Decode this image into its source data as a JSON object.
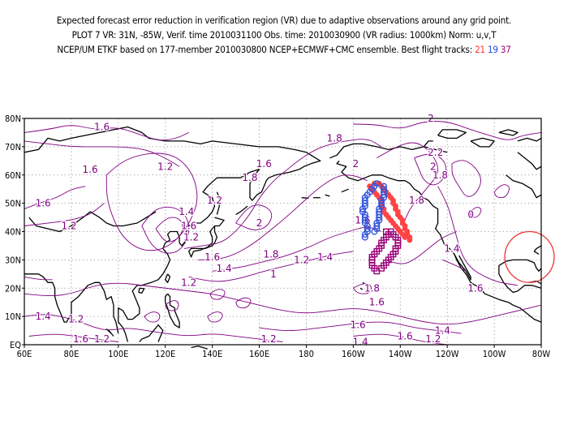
{
  "header": {
    "line1": "Expected forecast error reduction in verification region (VR) due to adaptive observations around any grid point.",
    "line2": "PLOT 7 VR: 31N, -85W, Verif. time 2010031100 Obs. time: 2010030900 (VR radius: 1000km) Norm: u,v,T",
    "line3_prefix": "NCEP/UM ETKF based on 177-member 2010030800 NCEP+ECMWF+CMC ensemble. Best flight tracks:",
    "tracks": [
      {
        "number": "21",
        "color": "#ff3333"
      },
      {
        "number": "19",
        "color": "#2244dd"
      },
      {
        "number": "37",
        "color": "#990077"
      }
    ]
  },
  "map": {
    "lon_labels": [
      "60E",
      "80E",
      "100E",
      "120E",
      "140E",
      "160E",
      "180",
      "160W",
      "140W",
      "120W",
      "100W",
      "80W"
    ],
    "lat_labels": [
      "EQ",
      "10N",
      "20N",
      "30N",
      "40N",
      "50N",
      "60N",
      "70N",
      "80N"
    ],
    "contour_color": "#800080",
    "contour_labels": [
      {
        "text": "1.6",
        "lon": 93,
        "lat": 77
      },
      {
        "text": "1.2",
        "lon": 120,
        "lat": 63
      },
      {
        "text": "1.6",
        "lon": 88,
        "lat": 62
      },
      {
        "text": "1.6",
        "lon": 68,
        "lat": 50
      },
      {
        "text": "1.2",
        "lon": 79,
        "lat": 42
      },
      {
        "text": "1.2",
        "lon": 141,
        "lat": 51
      },
      {
        "text": "1.4",
        "lon": 129,
        "lat": 47
      },
      {
        "text": "1.6",
        "lon": 130,
        "lat": 42
      },
      {
        "text": "1.2",
        "lon": 131,
        "lat": 38
      },
      {
        "text": "1.6",
        "lon": 162,
        "lat": 64
      },
      {
        "text": "1.8",
        "lon": 156,
        "lat": 59
      },
      {
        "text": "2",
        "lon": 160,
        "lat": 43
      },
      {
        "text": "1.8",
        "lon": 192,
        "lat": 73
      },
      {
        "text": "2",
        "lon": 201,
        "lat": 64
      },
      {
        "text": "1.6",
        "lon": 204,
        "lat": 44
      },
      {
        "text": "1.8",
        "lon": 165,
        "lat": 32
      },
      {
        "text": "1.6",
        "lon": 140,
        "lat": 31
      },
      {
        "text": "1.4",
        "lon": 145,
        "lat": 27
      },
      {
        "text": "1.2",
        "lon": 130,
        "lat": 22
      },
      {
        "text": "1.2",
        "lon": 178,
        "lat": 30
      },
      {
        "text": "1.4",
        "lon": 188,
        "lat": 31
      },
      {
        "text": "1",
        "lon": 166,
        "lat": 25
      },
      {
        "text": "2",
        "lon": 233,
        "lat": 80
      },
      {
        "text": "2.2",
        "lon": 235,
        "lat": 68
      },
      {
        "text": "2",
        "lon": 234,
        "lat": 63
      },
      {
        "text": "1.8",
        "lon": 237,
        "lat": 60
      },
      {
        "text": "1.8",
        "lon": 227,
        "lat": 51
      },
      {
        "text": "0",
        "lon": 250,
        "lat": 46
      },
      {
        "text": "1.4",
        "lon": 242,
        "lat": 34
      },
      {
        "text": "1.6",
        "lon": 252,
        "lat": 20
      },
      {
        "text": "1.8",
        "lon": 208,
        "lat": 20
      },
      {
        "text": "1.6",
        "lon": 210,
        "lat": 15
      },
      {
        "text": "1.6",
        "lon": 202,
        "lat": 7
      },
      {
        "text": "1.6",
        "lon": 222,
        "lat": 3
      },
      {
        "text": "1.4",
        "lon": 203,
        "lat": 1
      },
      {
        "text": "1.4",
        "lon": 238,
        "lat": 5
      },
      {
        "text": "1.2",
        "lon": 164,
        "lat": 2
      },
      {
        "text": "1.2",
        "lon": 234,
        "lat": 2
      },
      {
        "text": "1.4",
        "lon": 68,
        "lat": 10
      },
      {
        "text": "1.2",
        "lon": 82,
        "lat": 9
      },
      {
        "text": "1.6",
        "lon": 84,
        "lat": 2
      },
      {
        "text": "1.2",
        "lon": 93,
        "lat": 2
      }
    ],
    "verification_region": {
      "lat": 31,
      "lon": -85,
      "radius_km": 1000,
      "color": "#ee3333"
    },
    "flight_tracks": [
      {
        "id": "21",
        "color": "#ff4444",
        "marker": "dot",
        "points": [
          [
            57,
            211
          ],
          [
            56,
            212
          ],
          [
            55,
            213
          ],
          [
            54,
            214
          ],
          [
            53,
            215
          ],
          [
            52,
            216
          ],
          [
            51,
            217
          ],
          [
            50,
            217
          ],
          [
            49,
            218
          ],
          [
            48,
            218
          ],
          [
            47,
            219
          ],
          [
            46,
            219
          ],
          [
            45,
            220
          ],
          [
            44,
            221
          ],
          [
            43,
            221
          ],
          [
            42,
            222
          ],
          [
            41,
            222
          ],
          [
            40,
            223
          ],
          [
            39,
            223
          ],
          [
            38,
            224
          ],
          [
            37,
            224
          ],
          [
            38,
            222
          ],
          [
            39,
            221
          ],
          [
            40,
            220
          ],
          [
            41,
            219
          ],
          [
            42,
            218
          ],
          [
            43,
            217
          ],
          [
            44,
            216
          ],
          [
            45,
            215
          ],
          [
            46,
            214
          ],
          [
            47,
            213
          ],
          [
            48,
            213
          ],
          [
            49,
            212
          ],
          [
            50,
            212
          ],
          [
            51,
            212
          ],
          [
            52,
            211
          ],
          [
            53,
            210
          ],
          [
            54,
            209
          ],
          [
            55,
            208
          ],
          [
            56,
            207
          ],
          [
            57,
            209
          ]
        ]
      },
      {
        "id": "19",
        "color": "#3355dd",
        "marker": "circle",
        "points": [
          [
            57,
            210
          ],
          [
            56,
            209
          ],
          [
            55,
            208
          ],
          [
            54,
            207
          ],
          [
            53,
            206
          ],
          [
            52,
            205
          ],
          [
            51,
            205
          ],
          [
            50,
            205
          ],
          [
            49,
            205
          ],
          [
            48,
            204
          ],
          [
            47,
            204
          ],
          [
            46,
            205
          ],
          [
            45,
            205
          ],
          [
            44,
            205
          ],
          [
            43,
            205
          ],
          [
            42,
            206
          ],
          [
            41,
            206
          ],
          [
            40,
            206
          ],
          [
            39,
            205
          ],
          [
            38,
            205
          ],
          [
            40,
            209
          ],
          [
            41,
            210
          ],
          [
            42,
            210
          ],
          [
            43,
            210
          ],
          [
            44,
            211
          ],
          [
            45,
            211
          ],
          [
            46,
            211
          ],
          [
            47,
            211
          ],
          [
            48,
            211
          ],
          [
            49,
            212
          ],
          [
            50,
            212
          ],
          [
            51,
            212
          ],
          [
            52,
            213
          ],
          [
            53,
            213
          ],
          [
            54,
            213
          ],
          [
            55,
            213
          ],
          [
            56,
            213
          ]
        ]
      },
      {
        "id": "37",
        "color": "#990077",
        "marker": "square",
        "points": [
          [
            40,
            214
          ],
          [
            39,
            215
          ],
          [
            38,
            214
          ],
          [
            37,
            213
          ],
          [
            36,
            212
          ],
          [
            35,
            212
          ],
          [
            34,
            211
          ],
          [
            33,
            210
          ],
          [
            32,
            209
          ],
          [
            31,
            208
          ],
          [
            30,
            208
          ],
          [
            29,
            208
          ],
          [
            28,
            208
          ],
          [
            27,
            209
          ],
          [
            26,
            210
          ],
          [
            27,
            212
          ],
          [
            28,
            213
          ],
          [
            29,
            214
          ],
          [
            30,
            215
          ],
          [
            31,
            216
          ],
          [
            32,
            217
          ],
          [
            33,
            218
          ],
          [
            34,
            218
          ],
          [
            35,
            219
          ],
          [
            36,
            219
          ],
          [
            37,
            219
          ],
          [
            38,
            218
          ],
          [
            39,
            217
          ],
          [
            40,
            216
          ]
        ]
      }
    ]
  }
}
